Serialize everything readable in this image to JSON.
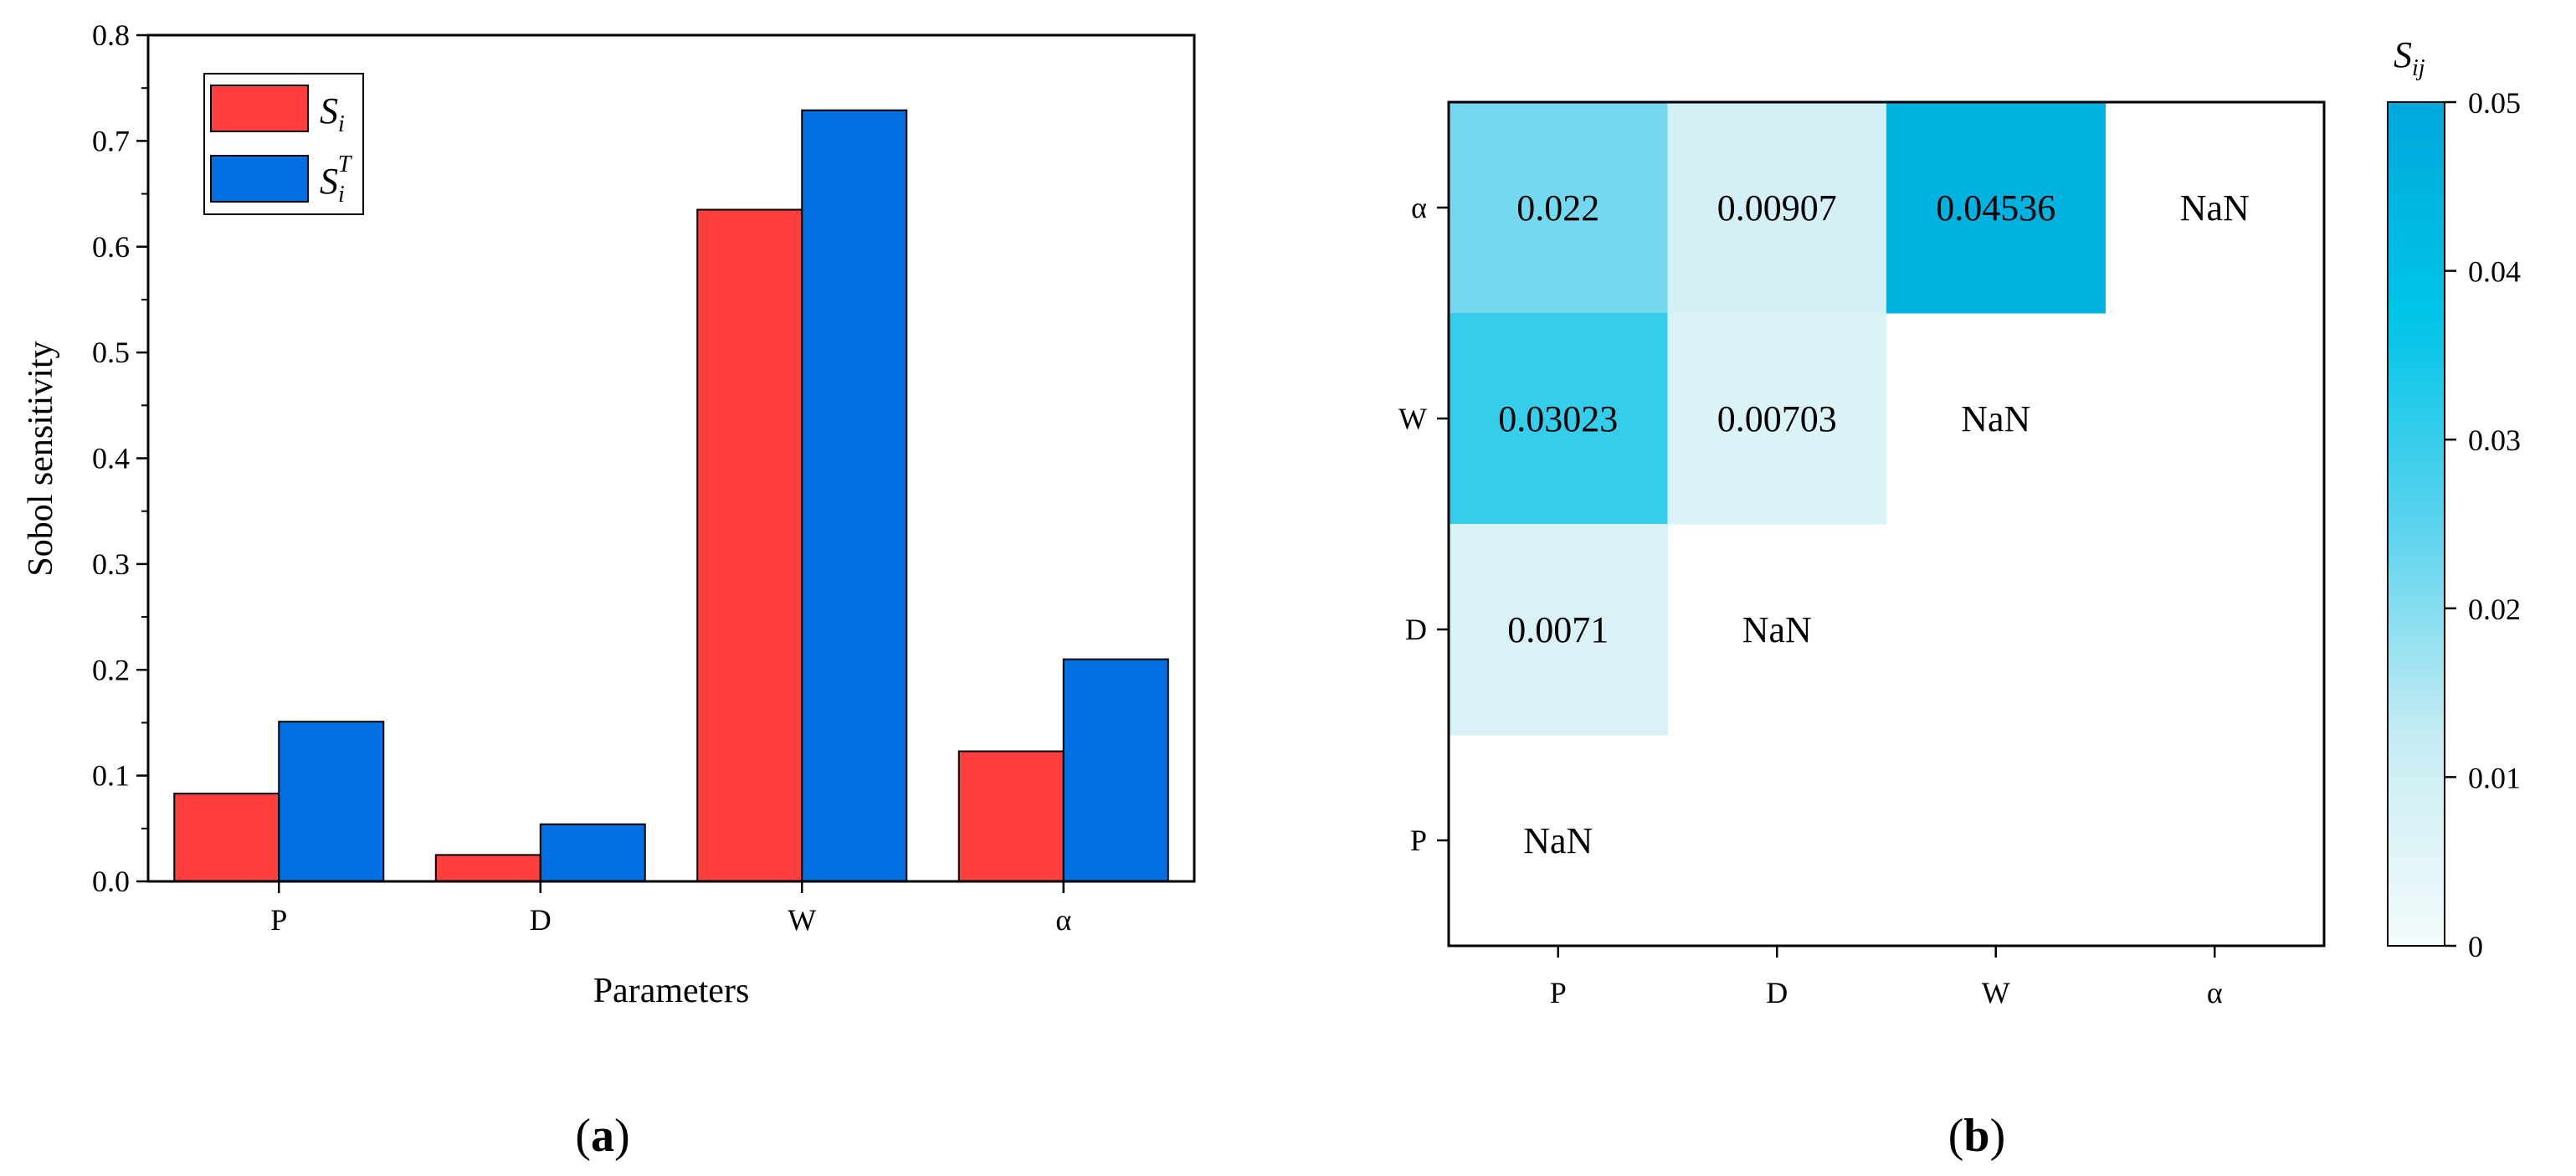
{
  "chart_data": [
    {
      "type": "bar",
      "panel_label": {
        "open": "(",
        "letter": "a",
        "close": ")"
      },
      "categories": [
        "P",
        "D",
        "W",
        "α"
      ],
      "series": [
        {
          "name": "S_i",
          "legend_base": "S",
          "legend_sub": "i",
          "legend_sup": "",
          "color": "#ff3e3e",
          "values": [
            0.083,
            0.025,
            0.635,
            0.123
          ]
        },
        {
          "name": "S_i^T",
          "legend_base": "S",
          "legend_sub": "i",
          "legend_sup": "T",
          "color": "#0070e0",
          "values": [
            0.151,
            0.054,
            0.729,
            0.21
          ]
        }
      ],
      "xlabel": "Parameters",
      "ylabel": "Sobol sensitivity",
      "ylim": [
        0,
        0.8
      ],
      "yticks": [
        "0.0",
        "0.1",
        "0.2",
        "0.3",
        "0.4",
        "0.5",
        "0.6",
        "0.7",
        "0.8"
      ],
      "legend_position": "top-left"
    },
    {
      "type": "heatmap",
      "panel_label": {
        "open": "(",
        "letter": "b",
        "close": ")"
      },
      "x_categories": [
        "P",
        "D",
        "W",
        "α"
      ],
      "y_categories": [
        "α",
        "W",
        "D",
        "P"
      ],
      "cells": [
        [
          {
            "label": "0.022",
            "value": 0.022
          },
          {
            "label": "0.00907",
            "value": 0.00907
          },
          {
            "label": "0.04536",
            "value": 0.04536
          },
          {
            "label": "NaN",
            "value": null
          }
        ],
        [
          {
            "label": "0.03023",
            "value": 0.03023
          },
          {
            "label": "0.00703",
            "value": 0.00703
          },
          {
            "label": "NaN",
            "value": null
          },
          {
            "label": "",
            "value": null
          }
        ],
        [
          {
            "label": "0.0071",
            "value": 0.0071
          },
          {
            "label": "NaN",
            "value": null
          },
          {
            "label": "",
            "value": null
          },
          {
            "label": "",
            "value": null
          }
        ],
        [
          {
            "label": "NaN",
            "value": null
          },
          {
            "label": "",
            "value": null
          },
          {
            "label": "",
            "value": null
          },
          {
            "label": "",
            "value": null
          }
        ]
      ],
      "colorbar": {
        "title_base": "S",
        "title_sub": "ij",
        "range": [
          0,
          0.05
        ],
        "ticks": [
          "0",
          "0.01",
          "0.02",
          "0.03",
          "0.04",
          "0.05"
        ],
        "colors": [
          "#f4fbfb",
          "#c5ecf3",
          "#5ad3ee",
          "#00c4e8",
          "#00a8dc"
        ]
      }
    }
  ]
}
